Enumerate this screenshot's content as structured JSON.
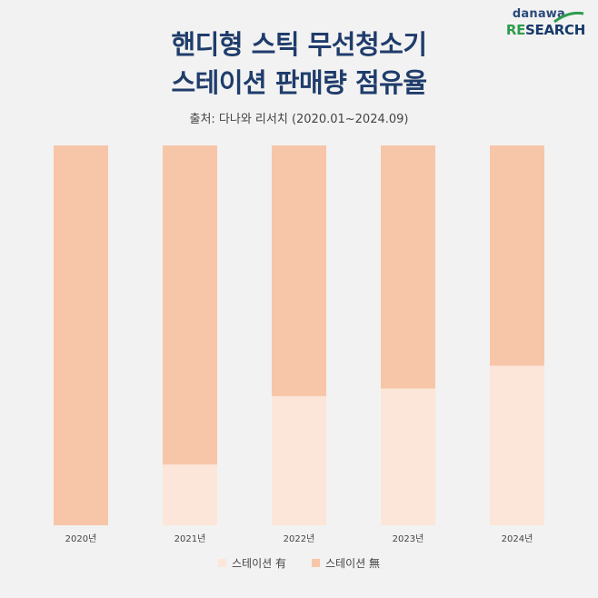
{
  "brand": {
    "top": "danawa",
    "bottom_accent": "RE",
    "bottom_rest": "SEARCH"
  },
  "title_lines": [
    "핸디형 스틱 무선청소기",
    "스테이션 판매량 점유율"
  ],
  "source": "출처: 다나와 리서치 (2020.01~2024.09)",
  "colors": {
    "with_station": "#fce6da",
    "without_station": "#f7c6a8",
    "background": "#f2f2f2"
  },
  "chart_data": {
    "type": "bar",
    "stacked": true,
    "normalized_percent": true,
    "title": "핸디형 스틱 무선청소기 스테이션 판매량 점유율",
    "categories": [
      "2020년",
      "2021년",
      "2022년",
      "2023년",
      "2024년"
    ],
    "series": [
      {
        "name": "스테이션 有",
        "values": [
          0,
          16,
          34,
          36,
          42
        ],
        "color": "#fce6da"
      },
      {
        "name": "스테이션 無",
        "values": [
          100,
          84,
          66,
          64,
          58
        ],
        "color": "#f7c6a8"
      }
    ],
    "ylim": [
      0,
      100
    ],
    "xlabel": "",
    "ylabel": "",
    "grid": false,
    "legend": "bottom-center"
  }
}
